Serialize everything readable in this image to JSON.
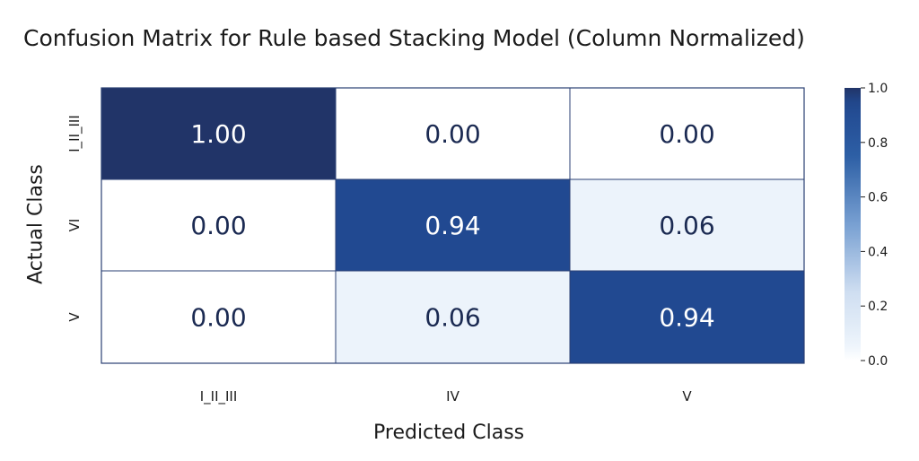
{
  "chart_data": {
    "type": "heatmap",
    "title": "Confusion Matrix for Rule based Stacking Model (Column Normalized)",
    "xlabel": "Predicted Class",
    "ylabel": "Actual Class",
    "x_categories": [
      "I_II_III",
      "IV",
      "V"
    ],
    "y_categories": [
      "I_II_III",
      "VI",
      "V"
    ],
    "values": [
      [
        1.0,
        0.0,
        0.0
      ],
      [
        0.0,
        0.94,
        0.06
      ],
      [
        0.0,
        0.06,
        0.94
      ]
    ],
    "cell_labels": [
      [
        "1.00",
        "0.00",
        "0.00"
      ],
      [
        "0.00",
        "0.94",
        "0.06"
      ],
      [
        "0.00",
        "0.06",
        "0.94"
      ]
    ],
    "colorbar": {
      "range": [
        0,
        1
      ],
      "ticks": [
        0.0,
        0.2,
        0.4,
        0.6,
        0.8,
        1.0
      ],
      "tick_labels": [
        "0.0",
        "0.2",
        "0.4",
        "0.6",
        "0.8",
        "1.0"
      ],
      "colormap": "Blues"
    },
    "colors": {
      "low": "#ffffff",
      "mid": "#c9d9ee",
      "high": "#1f3d7a",
      "text_dark": "#1b2a52",
      "text_light": "#ffffff"
    }
  }
}
